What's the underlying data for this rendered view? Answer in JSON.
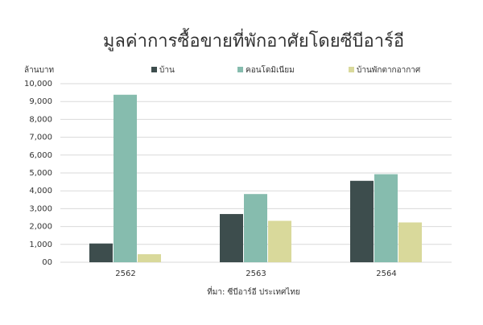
{
  "chart_data": {
    "type": "bar",
    "title": "มูลค่าการซื้อขายที่พักอาศัยโดยซีบีอาร์อี",
    "y_label": "ล้านบาท",
    "source": "ที่มา:  ซีบีอาร์อี ประเทศไทย",
    "categories": [
      "2562",
      "2563",
      "2564"
    ],
    "series": [
      {
        "name": "บ้าน",
        "color": "#3d4d4d",
        "values": [
          1050,
          2700,
          4560
        ]
      },
      {
        "name": "คอนโดมิเนียม",
        "color": "#86bcae",
        "values": [
          9380,
          3820,
          4930
        ]
      },
      {
        "name": "บ้านพักตากอากาศ",
        "color": "#d9d99b",
        "values": [
          450,
          2320,
          2230
        ]
      }
    ],
    "ylim": [
      0,
      10000
    ],
    "yticks": [
      {
        "value": 0,
        "label": "00"
      },
      {
        "value": 1000,
        "label": "1,000"
      },
      {
        "value": 2000,
        "label": "2,000"
      },
      {
        "value": 3000,
        "label": "3,000"
      },
      {
        "value": 4000,
        "label": "4,000"
      },
      {
        "value": 5000,
        "label": "5,000"
      },
      {
        "value": 6000,
        "label": "6,000"
      },
      {
        "value": 7000,
        "label": "7,000"
      },
      {
        "value": 8000,
        "label": "8,000"
      },
      {
        "value": 9000,
        "label": "9,000"
      },
      {
        "value": 10000,
        "label": "10,000"
      }
    ],
    "grid": true,
    "legend": "top"
  }
}
